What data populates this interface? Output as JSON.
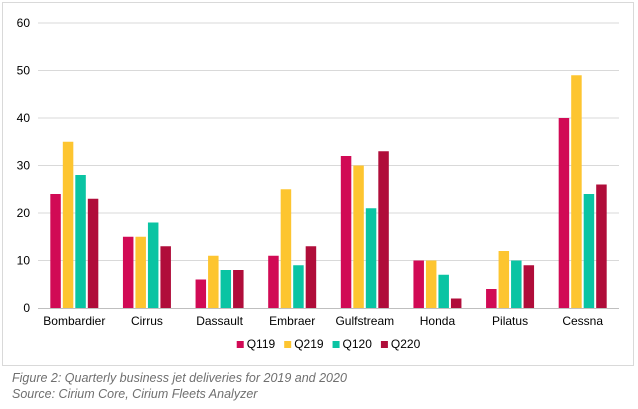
{
  "chart_data": {
    "type": "bar",
    "categories": [
      "Bombardier",
      "Cirrus",
      "Dassault",
      "Embraer",
      "Gulfstream",
      "Honda",
      "Pilatus",
      "Cessna"
    ],
    "series": [
      {
        "name": "Q119",
        "color": "#d10a55",
        "values": [
          24,
          15,
          6,
          11,
          32,
          10,
          4,
          40
        ]
      },
      {
        "name": "Q219",
        "color": "#fdc530",
        "values": [
          35,
          15,
          11,
          25,
          30,
          10,
          12,
          49
        ]
      },
      {
        "name": "Q120",
        "color": "#0ac4a3",
        "values": [
          28,
          18,
          8,
          9,
          21,
          7,
          10,
          24
        ]
      },
      {
        "name": "Q220",
        "color": "#b00d3a",
        "values": [
          23,
          13,
          8,
          13,
          33,
          2,
          9,
          26
        ]
      }
    ],
    "ylim": [
      0,
      60
    ],
    "yticks": [
      0,
      10,
      20,
      30,
      40,
      50,
      60
    ],
    "grid": true,
    "legend_position": "bottom-center",
    "title": "",
    "xlabel": "",
    "ylabel": ""
  },
  "caption": {
    "figure_line": "Figure 2: Quarterly business jet deliveries for 2019 and 2020",
    "source_line": "Source: Cirium Core, Cirium Fleets Analyzer"
  }
}
